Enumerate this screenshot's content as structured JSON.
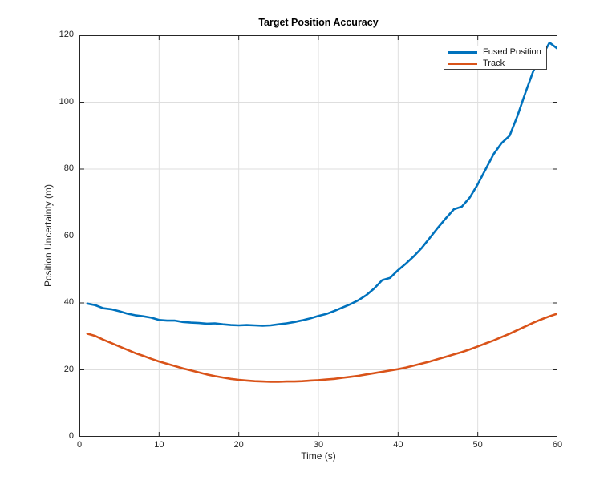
{
  "figure": {
    "background": "#ffffff"
  },
  "chart_data": {
    "type": "line",
    "title": "Target Position Accuracy",
    "xlabel": "Time (s)",
    "ylabel": "Position Uncertainty (m)",
    "xlim": [
      0,
      60
    ],
    "ylim": [
      0,
      120
    ],
    "xticks": [
      0,
      10,
      20,
      30,
      40,
      50,
      60
    ],
    "yticks": [
      0,
      20,
      40,
      60,
      80,
      100,
      120
    ],
    "grid": true,
    "grid_color": "#dedede",
    "axis_color": "#262626",
    "legend": {
      "location": "northeast"
    },
    "x": [
      1,
      2,
      3,
      4,
      5,
      6,
      7,
      8,
      9,
      10,
      11,
      12,
      13,
      14,
      15,
      16,
      17,
      18,
      19,
      20,
      21,
      22,
      23,
      24,
      25,
      26,
      27,
      28,
      29,
      30,
      31,
      32,
      33,
      34,
      35,
      36,
      37,
      38,
      39,
      40,
      41,
      42,
      43,
      44,
      45,
      46,
      47,
      48,
      49,
      50,
      51,
      52,
      53,
      54,
      55,
      56,
      57,
      58,
      59,
      60
    ],
    "series": [
      {
        "name": "Fused Position",
        "color": "#0072BD",
        "values": [
          39.8,
          39.3,
          38.4,
          38.1,
          37.5,
          36.8,
          36.3,
          36.0,
          35.6,
          34.9,
          34.7,
          34.7,
          34.3,
          34.1,
          34.0,
          33.8,
          33.9,
          33.6,
          33.4,
          33.3,
          33.4,
          33.3,
          33.2,
          33.3,
          33.6,
          33.9,
          34.3,
          34.8,
          35.4,
          36.1,
          36.7,
          37.6,
          38.6,
          39.6,
          40.8,
          42.3,
          44.3,
          46.8,
          47.5,
          49.8,
          51.8,
          54.0,
          56.5,
          59.5,
          62.5,
          65.3,
          68.0,
          68.8,
          71.5,
          75.5,
          80.0,
          84.5,
          87.8,
          90.0,
          96.0,
          103.0,
          109.5,
          113.5,
          117.8,
          116.0
        ]
      },
      {
        "name": "Track",
        "color": "#D95319",
        "values": [
          30.8,
          30.1,
          29.0,
          28.0,
          27.0,
          26.0,
          25.0,
          24.2,
          23.3,
          22.5,
          21.8,
          21.1,
          20.4,
          19.8,
          19.2,
          18.6,
          18.1,
          17.7,
          17.3,
          17.0,
          16.8,
          16.6,
          16.5,
          16.4,
          16.4,
          16.5,
          16.5,
          16.6,
          16.8,
          16.9,
          17.1,
          17.3,
          17.6,
          17.9,
          18.2,
          18.6,
          19.0,
          19.4,
          19.8,
          20.2,
          20.7,
          21.3,
          21.9,
          22.5,
          23.2,
          23.9,
          24.6,
          25.3,
          26.1,
          27.0,
          27.9,
          28.8,
          29.8,
          30.8,
          31.9,
          33.0,
          34.1,
          35.1,
          36.0,
          36.8
        ]
      }
    ]
  }
}
